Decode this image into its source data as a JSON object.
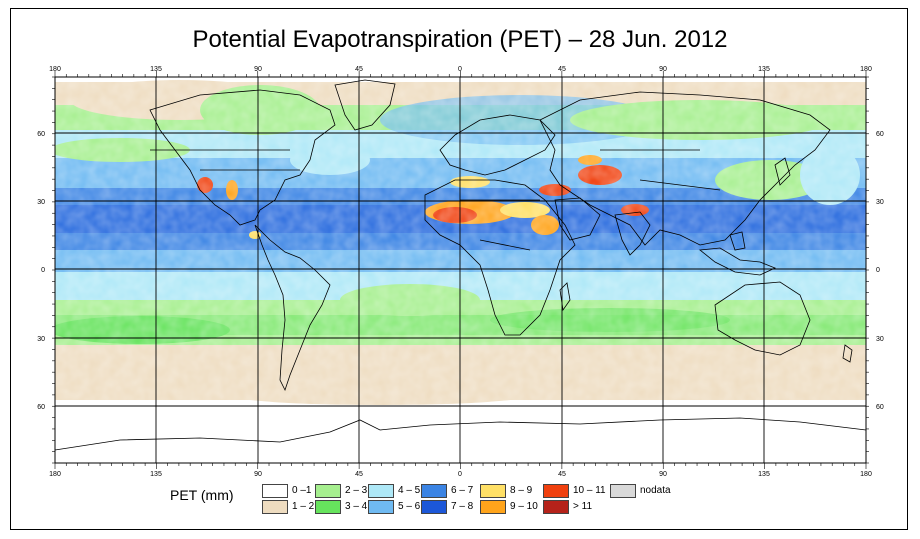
{
  "title": "Potential Evapotranspiration (PET) – 28 Jun. 2012",
  "map": {
    "lon_ticks": [
      "180",
      "135",
      "90",
      "45",
      "0",
      "45",
      "90",
      "135",
      "180"
    ],
    "lat_ticks_left": [
      "60",
      "30",
      "0",
      "30",
      "60"
    ],
    "lat_ticks_right": [
      "60",
      "30",
      "0",
      "30",
      "60"
    ]
  },
  "legend": {
    "title": "PET (mm)",
    "classes": [
      {
        "label": "0 –1",
        "color": "#ffffff"
      },
      {
        "label": "1 – 2",
        "color": "#eedcc0"
      },
      {
        "label": "2 – 3",
        "color": "#a6ef8f"
      },
      {
        "label": "3 – 4",
        "color": "#66e35d"
      },
      {
        "label": "4 – 5",
        "color": "#aee8f7"
      },
      {
        "label": "5 – 6",
        "color": "#6fbaf2"
      },
      {
        "label": "6 – 7",
        "color": "#3b84e4"
      },
      {
        "label": "7 – 8",
        "color": "#1c57d8"
      },
      {
        "label": "8 – 9",
        "color": "#ffe066"
      },
      {
        "label": "9 – 10",
        "color": "#ffa41b"
      },
      {
        "label": "10 – 11",
        "color": "#f0400e"
      },
      {
        "label": "> 11",
        "color": "#b5221a"
      },
      {
        "label": "nodata",
        "color": "#d9d9d9"
      }
    ]
  }
}
